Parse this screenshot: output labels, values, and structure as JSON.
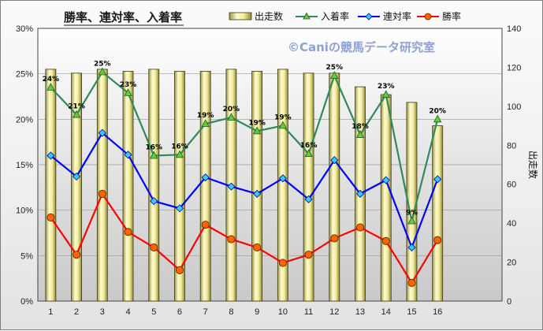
{
  "chart_data": {
    "type": "bar+line",
    "title": "勝率、連対率、入着率",
    "watermark": "©Caniの競馬データ研究室",
    "categories": [
      "1",
      "2",
      "3",
      "4",
      "5",
      "6",
      "7",
      "8",
      "9",
      "10",
      "11",
      "12",
      "13",
      "14",
      "15",
      "16"
    ],
    "y_left_ticks": [
      "0%",
      "5%",
      "10%",
      "15%",
      "20%",
      "25%",
      "30%"
    ],
    "y_left_range": [
      0,
      30
    ],
    "y_right_ticks": [
      "0",
      "20",
      "40",
      "60",
      "80",
      "100",
      "120",
      "140"
    ],
    "y_right_range": [
      0,
      140
    ],
    "y_right_label": "出走数",
    "grid": true,
    "legend_position": "top-right",
    "series": [
      {
        "name": "出走数",
        "kind": "bar",
        "axis": "right",
        "color": "#d8d27a",
        "values": [
          119,
          117,
          119,
          118,
          119,
          118,
          118,
          119,
          118,
          119,
          117,
          117,
          110,
          106,
          102,
          90
        ]
      },
      {
        "name": "入着率",
        "kind": "line",
        "axis": "left",
        "color": "#2e8b57",
        "marker": "triangle",
        "marker_fill": "#66cc33",
        "values": [
          23.5,
          20.5,
          25.2,
          22.9,
          16.0,
          16.1,
          19.5,
          20.2,
          18.7,
          19.3,
          16.2,
          24.8,
          18.3,
          22.7,
          8.8,
          20.0
        ],
        "labels": [
          "24%",
          "21%",
          "25%",
          "23%",
          "16%",
          "16%",
          "19%",
          "20%",
          "19%",
          "19%",
          "16%",
          "25%",
          "18%",
          "23%",
          "9%",
          "20%"
        ]
      },
      {
        "name": "連対率",
        "kind": "line",
        "axis": "left",
        "color": "#0000ff",
        "marker": "diamond",
        "marker_fill": "#33ccff",
        "values": [
          16.0,
          13.7,
          18.5,
          16.1,
          11.0,
          10.2,
          13.6,
          12.6,
          11.8,
          13.5,
          11.2,
          15.5,
          11.8,
          13.3,
          5.9,
          13.4
        ]
      },
      {
        "name": "勝率",
        "kind": "line",
        "axis": "left",
        "color": "#ff0000",
        "marker": "circle",
        "marker_fill": "#ff6600",
        "values": [
          9.2,
          5.1,
          11.8,
          7.6,
          5.9,
          3.4,
          8.4,
          6.8,
          5.9,
          4.2,
          5.1,
          6.9,
          8.1,
          6.6,
          2.0,
          6.7
        ]
      }
    ]
  }
}
